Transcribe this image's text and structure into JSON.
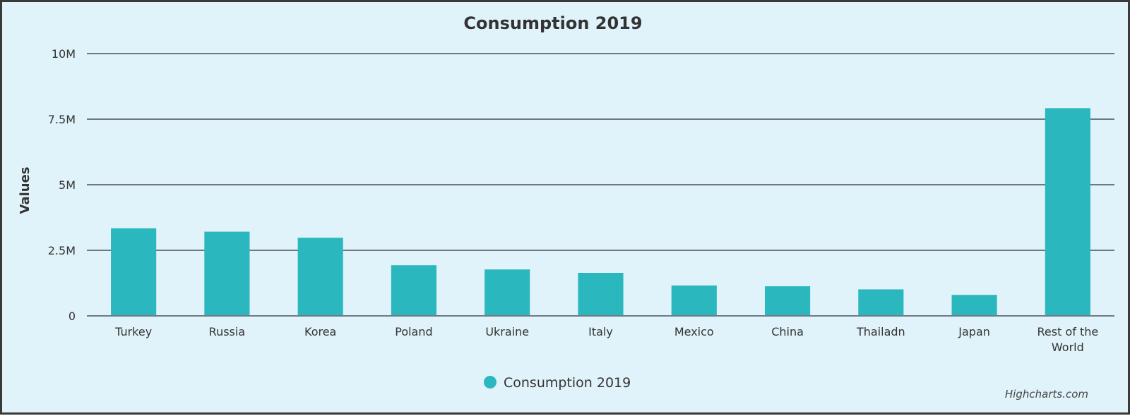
{
  "chart_data": {
    "type": "bar",
    "title": "Consumption 2019",
    "xlabel": "",
    "ylabel": "Values",
    "ylim": [
      0,
      10000000
    ],
    "yticks": [
      0,
      2500000,
      5000000,
      7500000,
      10000000
    ],
    "ytick_labels": [
      "0",
      "2.5M",
      "5M",
      "7.5M",
      "10M"
    ],
    "grid": true,
    "categories": [
      "Turkey",
      "Russia",
      "Korea",
      "Poland",
      "Ukraine",
      "Italy",
      "Mexico",
      "China",
      "Thailadn",
      "Japan",
      "Rest of the World"
    ],
    "category_label_lines": [
      [
        "Turkey"
      ],
      [
        "Russia"
      ],
      [
        "Korea"
      ],
      [
        "Poland"
      ],
      [
        "Ukraine"
      ],
      [
        "Italy"
      ],
      [
        "Mexico"
      ],
      [
        "China"
      ],
      [
        "Thailadn"
      ],
      [
        "Japan"
      ],
      [
        "Rest of the",
        "World"
      ]
    ],
    "series": [
      {
        "name": "Consumption 2019",
        "color": "#2bb7be",
        "values": [
          3340000,
          3210000,
          2980000,
          1930000,
          1770000,
          1640000,
          1160000,
          1130000,
          1010000,
          800000,
          7920000
        ]
      }
    ],
    "legend": {
      "position": "bottom-center",
      "entries": [
        "Consumption 2019"
      ]
    }
  },
  "credits": "Highcharts.com",
  "colors": {
    "background": "#e1f3fa",
    "bar": "#2bb7be",
    "text": "#333333"
  }
}
